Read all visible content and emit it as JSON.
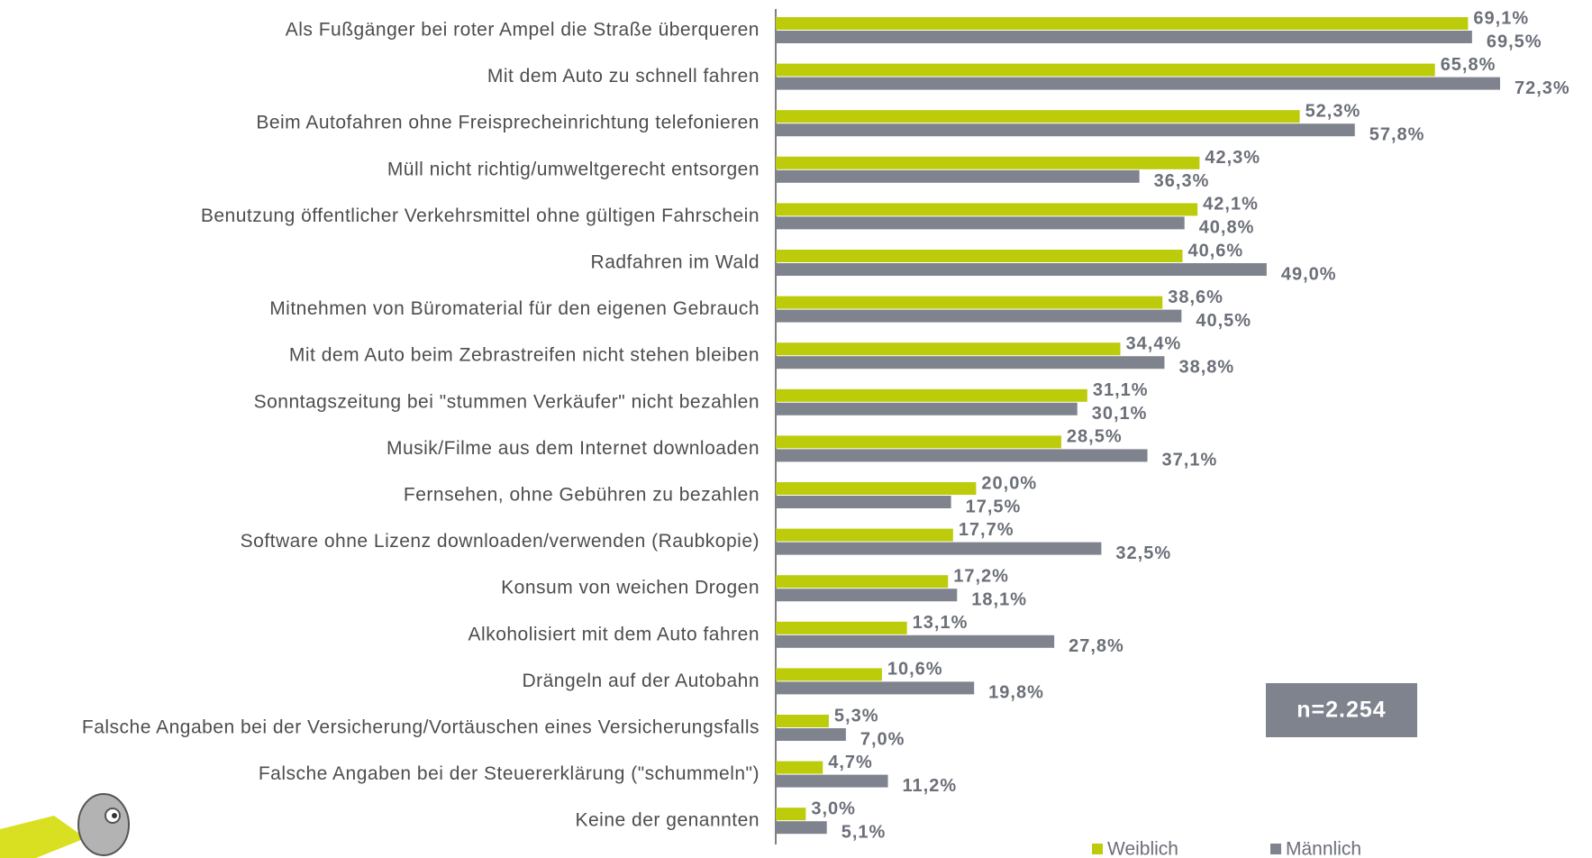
{
  "chart_data": {
    "type": "bar",
    "orientation": "horizontal",
    "categories": [
      "Als Fußgänger bei roter Ampel die Straße überqueren",
      "Mit dem Auto zu schnell fahren",
      "Beim Autofahren ohne Freisprecheinrichtung telefonieren",
      "Müll nicht richtig/umweltgerecht entsorgen",
      "Benutzung öffentlicher Verkehrsmittel ohne gültigen Fahrschein",
      "Radfahren im Wald",
      "Mitnehmen von Büromaterial für den eigenen Gebrauch",
      "Mit dem Auto beim Zebrastreifen nicht stehen bleiben",
      "Sonntagszeitung bei \"stummen Verkäufer\" nicht bezahlen",
      "Musik/Filme aus dem Internet downloaden",
      "Fernsehen, ohne Gebühren zu bezahlen",
      "Software ohne Lizenz downloaden/verwenden (Raubkopie)",
      "Konsum von weichen Drogen",
      "Alkoholisiert mit dem Auto fahren",
      "Drängeln auf der Autobahn",
      "Falsche Angaben bei der Versicherung/Vortäuschen eines Versicherungsfalls",
      "Falsche Angaben bei der Steuererklärung (\"schummeln\")",
      "Keine der genannten"
    ],
    "series": [
      {
        "name": "Weiblich",
        "color": "#bccb0a",
        "values": [
          69.1,
          65.8,
          52.3,
          42.3,
          42.1,
          40.6,
          38.6,
          34.4,
          31.1,
          28.5,
          20.0,
          17.7,
          17.2,
          13.1,
          10.6,
          5.3,
          4.7,
          3.0
        ],
        "value_labels": [
          "69,1%",
          "65,8%",
          "52,3%",
          "42,3%",
          "42,1%",
          "40,6%",
          "38,6%",
          "34,4%",
          "31,1%",
          "28,5%",
          "20,0%",
          "17,7%",
          "17,2%",
          "13,1%",
          "10,6%",
          "5,3%",
          "4,7%",
          "3,0%"
        ]
      },
      {
        "name": "Männlich",
        "color": "#7e838d",
        "values": [
          69.5,
          72.3,
          57.8,
          36.3,
          40.8,
          49.0,
          40.5,
          38.8,
          30.1,
          37.1,
          17.5,
          32.5,
          18.1,
          27.8,
          19.8,
          7.0,
          11.2,
          5.1
        ],
        "value_labels": [
          "69,5%",
          "72,3%",
          "57,8%",
          "36,3%",
          "40,8%",
          "49,0%",
          "40,5%",
          "38,8%",
          "30,1%",
          "37,1%",
          "17,5%",
          "32,5%",
          "18,1%",
          "27,8%",
          "19,8%",
          "7,0%",
          "11,2%",
          "5,1%"
        ]
      }
    ],
    "annotation": "n=2.254",
    "legend": "bottom-right"
  }
}
